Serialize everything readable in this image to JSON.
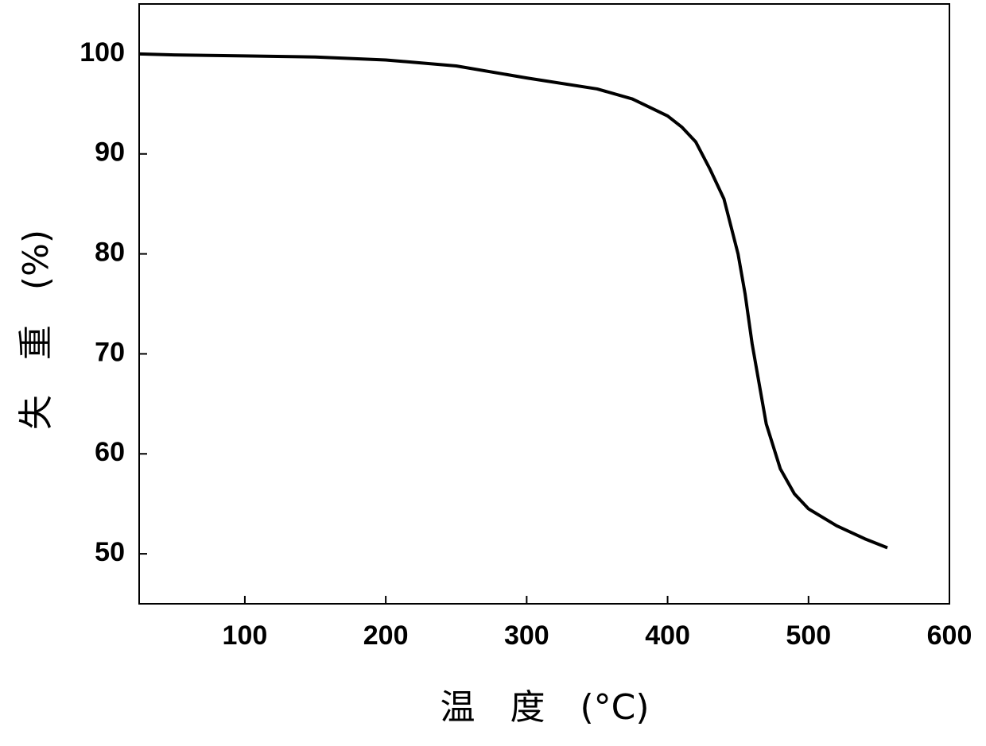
{
  "chart_data": {
    "type": "line",
    "xlabel": "温　度　(°C)",
    "ylabel": "失　重　(%)",
    "x": [
      25,
      50,
      100,
      150,
      200,
      250,
      300,
      350,
      375,
      400,
      410,
      420,
      430,
      440,
      450,
      455,
      460,
      465,
      470,
      480,
      490,
      500,
      520,
      540,
      556
    ],
    "series": [
      {
        "color": "#000000",
        "values": [
          100,
          99.9,
          99.8,
          99.7,
          99.4,
          98.8,
          97.6,
          96.5,
          95.5,
          93.8,
          92.7,
          91.2,
          88.5,
          85.5,
          80,
          76,
          71,
          67,
          63,
          58.5,
          56,
          54.5,
          52.8,
          51.5,
          50.6
        ]
      }
    ],
    "xlim": [
      25,
      600
    ],
    "ylim": [
      45,
      105
    ],
    "xticks": [
      100,
      200,
      300,
      400,
      500,
      600
    ],
    "yticks": [
      50,
      60,
      70,
      80,
      90,
      100
    ],
    "grid": false
  }
}
